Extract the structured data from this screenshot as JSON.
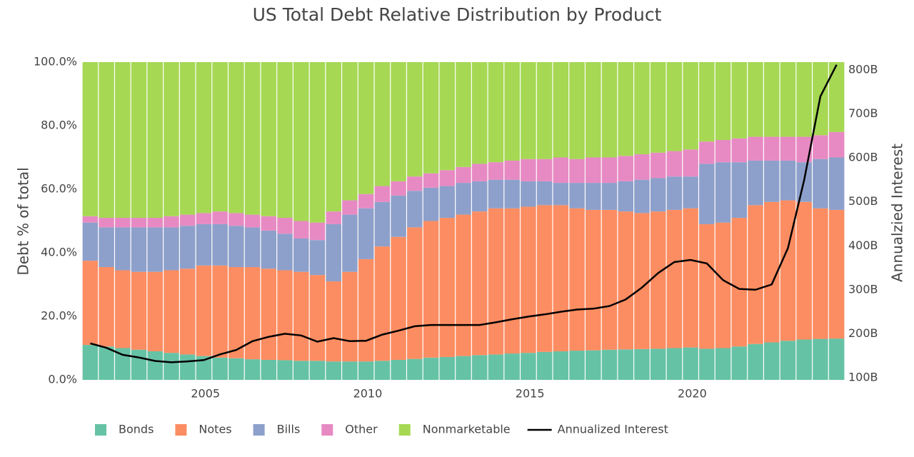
{
  "chart_data": {
    "type": "stacked_bar_line",
    "title": "US Total Debt Relative Distribution by Product",
    "y_label": "Debt % of total",
    "y2_label": "Annualzied Interest",
    "x": [
      2001.45,
      2001.95,
      2002.45,
      2002.95,
      2003.45,
      2003.95,
      2004.45,
      2004.95,
      2005.45,
      2005.95,
      2006.45,
      2006.95,
      2007.45,
      2007.95,
      2008.45,
      2008.95,
      2009.45,
      2009.95,
      2010.45,
      2010.95,
      2011.45,
      2011.95,
      2012.45,
      2012.95,
      2013.45,
      2013.95,
      2014.45,
      2014.95,
      2015.45,
      2015.95,
      2016.45,
      2016.95,
      2017.45,
      2017.95,
      2018.45,
      2018.95,
      2019.45,
      2019.95,
      2020.45,
      2020.95,
      2021.45,
      2021.95,
      2022.45,
      2022.95,
      2023.45,
      2023.95,
      2024.45
    ],
    "xlim": [
      2001.2,
      2024.7
    ],
    "xticks": [
      2005,
      2010,
      2015,
      2020
    ],
    "ylim": [
      0,
      100
    ],
    "yticks": [
      {
        "value": 0,
        "label": "0.0%"
      },
      {
        "value": 20,
        "label": "20.0%"
      },
      {
        "value": 40,
        "label": "40.0%"
      },
      {
        "value": 60,
        "label": "60.0%"
      },
      {
        "value": 80,
        "label": "80.0%"
      },
      {
        "value": 100,
        "label": "100.0%"
      }
    ],
    "y2lim": [
      95,
      818
    ],
    "y2ticks": [
      {
        "value": 100,
        "label": "100B"
      },
      {
        "value": 200,
        "label": "200B"
      },
      {
        "value": 300,
        "label": "300B"
      },
      {
        "value": 400,
        "label": "400B"
      },
      {
        "value": 500,
        "label": "500B"
      },
      {
        "value": 600,
        "label": "600B"
      },
      {
        "value": 700,
        "label": "700B"
      },
      {
        "value": 800,
        "label": "800B"
      }
    ],
    "legend": "bottom",
    "series": [
      {
        "name": "Bonds",
        "color": "#66c2a5",
        "values": [
          11,
          10.5,
          10,
          9.5,
          9,
          8.5,
          8,
          7.5,
          7,
          6.8,
          6.5,
          6.3,
          6.2,
          6,
          6,
          5.8,
          5.8,
          5.8,
          6,
          6.3,
          6.6,
          7,
          7.2,
          7.5,
          7.8,
          8,
          8.3,
          8.5,
          8.8,
          9,
          9.2,
          9.3,
          9.5,
          9.6,
          9.7,
          9.8,
          10,
          10.2,
          9.8,
          10,
          10.5,
          11.3,
          11.8,
          12.3,
          12.7,
          12.9,
          13
        ]
      },
      {
        "name": "Notes",
        "color": "#fc8d62",
        "values": [
          26.5,
          25,
          24.5,
          24.5,
          25,
          26,
          27,
          28.5,
          29,
          28.7,
          29,
          28.7,
          28.3,
          28,
          27,
          25.2,
          28.2,
          32.2,
          36,
          38.7,
          41.4,
          43,
          43.8,
          44.5,
          45.2,
          46,
          45.7,
          46,
          46.2,
          46,
          44.8,
          44.2,
          44,
          43.4,
          42.8,
          43.2,
          43.5,
          43.8,
          39.2,
          39.5,
          40.5,
          43.7,
          44.2,
          44.2,
          43.3,
          41.1,
          40.5
        ]
      },
      {
        "name": "Bills",
        "color": "#8da0cb",
        "values": [
          12,
          12.5,
          13.5,
          14,
          14,
          13.5,
          13.5,
          13,
          13,
          13,
          12.5,
          12,
          11.5,
          10.5,
          11,
          18,
          18,
          16,
          14,
          13,
          11.5,
          10.5,
          10,
          10,
          9.5,
          9,
          9,
          8,
          7.5,
          7,
          8,
          8.5,
          8.5,
          9.5,
          10.5,
          10.5,
          10.5,
          10,
          19,
          19,
          17.5,
          14,
          13,
          12.5,
          12.5,
          15.5,
          16.5
        ]
      },
      {
        "name": "Other",
        "color": "#e78ac3",
        "values": [
          2,
          3,
          3,
          3,
          3,
          3.5,
          3.5,
          3.5,
          4,
          4,
          4,
          4.5,
          5,
          5.5,
          5.5,
          4,
          4.5,
          4.5,
          5,
          4.5,
          4.5,
          4.5,
          5,
          5,
          5.5,
          5.5,
          6,
          7,
          7,
          8,
          7.5,
          8,
          8,
          8,
          8,
          8,
          8,
          8.5,
          7,
          7,
          7.5,
          7.5,
          7.5,
          7.5,
          8,
          7.5,
          8
        ]
      },
      {
        "name": "Nonmarketable",
        "color": "#a6d854",
        "values": [
          48.5,
          49,
          49,
          49,
          49,
          48.5,
          48,
          47.5,
          47,
          47.5,
          48,
          48.5,
          49,
          50,
          50.5,
          47,
          43.5,
          41.5,
          39,
          37.5,
          36,
          35,
          34,
          33,
          32,
          31.5,
          31,
          30.5,
          30.5,
          30,
          30.5,
          30,
          30,
          29.5,
          29,
          28.5,
          28,
          27.5,
          25,
          24.5,
          24,
          23.5,
          23.5,
          23.5,
          23.5,
          23,
          22
        ]
      },
      {
        "name": "Annualized Interest",
        "color": "#000000",
        "axis": "y2",
        "values": [
          178,
          168,
          152,
          146,
          138,
          135,
          137,
          140,
          153,
          163,
          183,
          193,
          200,
          196,
          182,
          190,
          183,
          184,
          198,
          207,
          217,
          220,
          220,
          220,
          220,
          226,
          233,
          239,
          244,
          250,
          255,
          257,
          263,
          278,
          305,
          338,
          363,
          368,
          360,
          322,
          302,
          300,
          312,
          395,
          550,
          740,
          812
        ]
      }
    ]
  }
}
